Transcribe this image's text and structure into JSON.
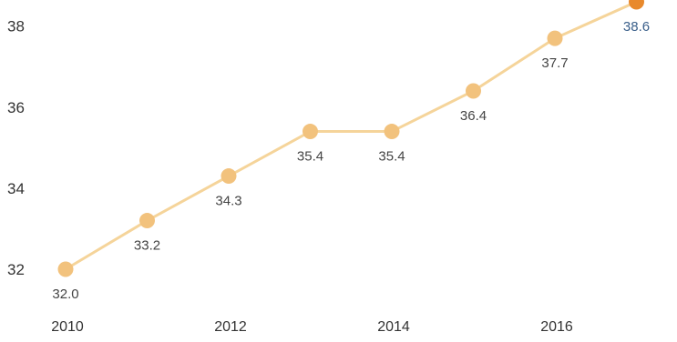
{
  "chart_data": {
    "type": "line",
    "x": [
      2010,
      2011,
      2012,
      2013,
      2014,
      2015,
      2016,
      2017
    ],
    "series": [
      {
        "values": [
          32.0,
          33.2,
          34.3,
          35.4,
          35.4,
          36.4,
          37.7,
          38.6
        ],
        "labels": [
          "32.0",
          "33.2",
          "34.3",
          "35.4",
          "35.4",
          "36.4",
          "37.7",
          "38.6"
        ]
      }
    ],
    "x_ticks": [
      2010,
      2012,
      2014,
      2016
    ],
    "x_tick_labels": [
      "2010",
      "2012",
      "2014",
      "2016"
    ],
    "y_ticks": [
      32,
      34,
      36,
      38
    ],
    "y_tick_labels": [
      "32",
      "34",
      "36",
      "38"
    ],
    "grid": false,
    "colors": {
      "line": "#f5d49a",
      "marker": "#f2c27d",
      "marker_highlight": "#e8892c",
      "label_highlight": "#3a5f8a"
    }
  }
}
